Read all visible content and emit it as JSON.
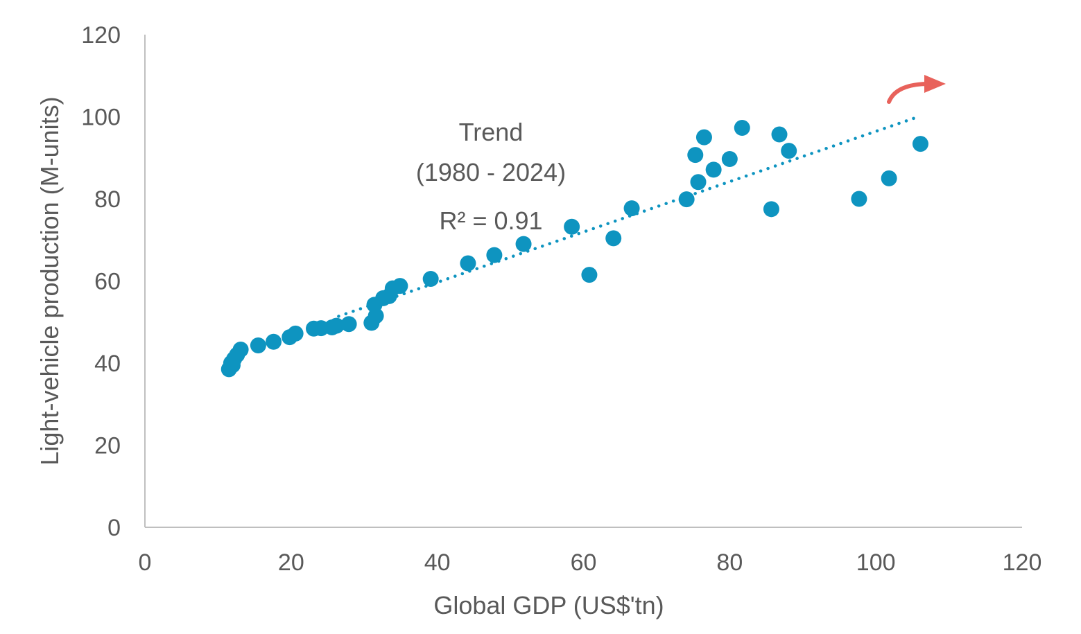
{
  "chart_data": {
    "type": "scatter",
    "xlabel": "Global GDP (US$'tn)",
    "ylabel": "Light-vehicle production (M-units)",
    "xlim": [
      0,
      120
    ],
    "ylim": [
      0,
      120
    ],
    "xticks": [
      "0",
      "20",
      "40",
      "60",
      "80",
      "100",
      "120"
    ],
    "yticks": [
      "0",
      "20",
      "40",
      "60",
      "80",
      "100",
      "120"
    ],
    "grid": false,
    "point_color": "#0E94C0",
    "arrow_color": "#E8625B",
    "annotation": {
      "line1": "Trend",
      "line2": "(1980 - 2024)",
      "line3": "R² = 0.91"
    },
    "trendline": {
      "x": [
        26.5,
        105.8
      ],
      "y": [
        51.4,
        100.0
      ],
      "style": "dotted"
    },
    "points": [
      {
        "x": 11.5,
        "y": 38.5
      },
      {
        "x": 11.8,
        "y": 40.0
      },
      {
        "x": 12.0,
        "y": 39.5
      },
      {
        "x": 12.2,
        "y": 41.0
      },
      {
        "x": 12.6,
        "y": 42.0
      },
      {
        "x": 13.1,
        "y": 43.3
      },
      {
        "x": 15.5,
        "y": 44.3
      },
      {
        "x": 17.6,
        "y": 45.2
      },
      {
        "x": 19.8,
        "y": 46.3
      },
      {
        "x": 20.6,
        "y": 47.2
      },
      {
        "x": 23.1,
        "y": 48.4
      },
      {
        "x": 24.1,
        "y": 48.5
      },
      {
        "x": 25.6,
        "y": 48.7
      },
      {
        "x": 26.2,
        "y": 49.1
      },
      {
        "x": 27.9,
        "y": 49.5
      },
      {
        "x": 31.0,
        "y": 49.8
      },
      {
        "x": 31.6,
        "y": 51.5
      },
      {
        "x": 31.4,
        "y": 54.2
      },
      {
        "x": 32.6,
        "y": 55.8
      },
      {
        "x": 33.4,
        "y": 56.3
      },
      {
        "x": 33.9,
        "y": 58.2
      },
      {
        "x": 34.9,
        "y": 58.8
      },
      {
        "x": 39.1,
        "y": 60.5
      },
      {
        "x": 44.2,
        "y": 64.3
      },
      {
        "x": 47.8,
        "y": 66.3
      },
      {
        "x": 51.8,
        "y": 69.0
      },
      {
        "x": 58.4,
        "y": 73.2
      },
      {
        "x": 60.8,
        "y": 61.5
      },
      {
        "x": 64.1,
        "y": 70.4
      },
      {
        "x": 66.6,
        "y": 77.7
      },
      {
        "x": 74.1,
        "y": 79.9
      },
      {
        "x": 75.3,
        "y": 90.7
      },
      {
        "x": 75.7,
        "y": 84.1
      },
      {
        "x": 76.5,
        "y": 95.0
      },
      {
        "x": 77.8,
        "y": 87.1
      },
      {
        "x": 80.0,
        "y": 89.7
      },
      {
        "x": 81.7,
        "y": 97.3
      },
      {
        "x": 85.7,
        "y": 77.5
      },
      {
        "x": 86.8,
        "y": 95.7
      },
      {
        "x": 88.1,
        "y": 91.7
      },
      {
        "x": 97.7,
        "y": 80.0
      },
      {
        "x": 101.8,
        "y": 85.0
      },
      {
        "x": 106.1,
        "y": 93.4
      }
    ]
  }
}
